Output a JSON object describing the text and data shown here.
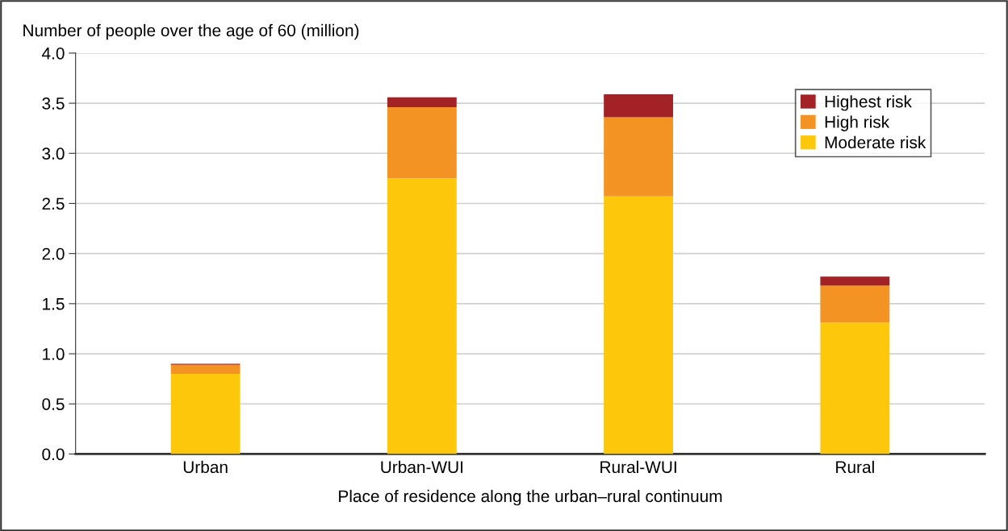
{
  "chart_data": {
    "type": "bar",
    "stacked": true,
    "ylabel": "Number of people over the age of 60 (million)",
    "xlabel": "Place of residence along the urban–rural continuum",
    "categories": [
      "Urban",
      "Urban-WUI",
      "Rural-WUI",
      "Rural"
    ],
    "series": [
      {
        "name": "Moderate risk",
        "color": "#fdc70c",
        "values": [
          0.8,
          2.75,
          2.57,
          1.31
        ]
      },
      {
        "name": "High risk",
        "color": "#f39323",
        "values": [
          0.09,
          0.71,
          0.79,
          0.37
        ]
      },
      {
        "name": "Highest risk",
        "color": "#a32225",
        "values": [
          0.01,
          0.1,
          0.23,
          0.09
        ]
      }
    ],
    "ylim": [
      0,
      4
    ],
    "yticks": [
      {
        "value": 0,
        "label": "0.0"
      },
      {
        "value": 0.5,
        "label": "0.5"
      },
      {
        "value": 1,
        "label": "1.0"
      },
      {
        "value": 1.5,
        "label": "1.5"
      },
      {
        "value": 2,
        "label": "2.0"
      },
      {
        "value": 2.5,
        "label": "2.5"
      },
      {
        "value": 3,
        "label": "3.0"
      },
      {
        "value": 3.5,
        "label": "3.5"
      },
      {
        "value": 4,
        "label": "4.0"
      }
    ],
    "grid": "y",
    "legend": "top right"
  }
}
